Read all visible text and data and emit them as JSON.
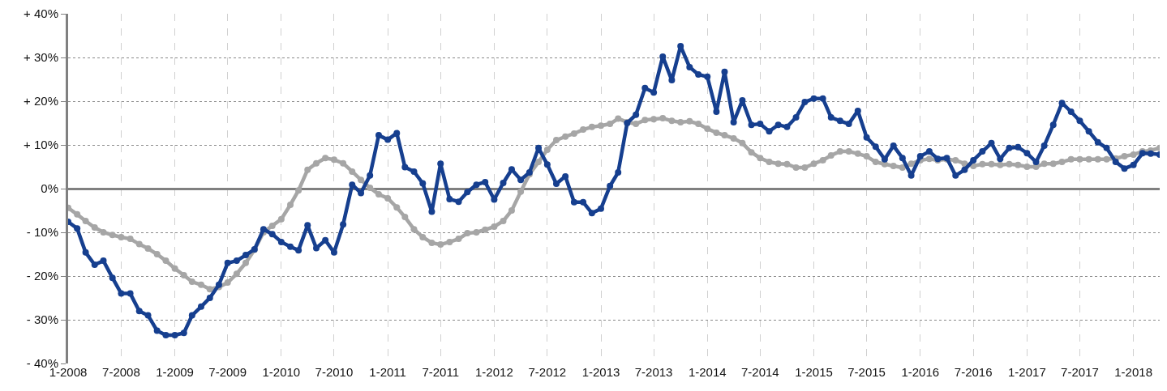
{
  "chart_data": {
    "type": "line",
    "marker": "circle",
    "grid": true,
    "legend": false,
    "x": [
      "2008-01",
      "2008-02",
      "2008-03",
      "2008-04",
      "2008-05",
      "2008-06",
      "2008-07",
      "2008-08",
      "2008-09",
      "2008-10",
      "2008-11",
      "2008-12",
      "2009-01",
      "2009-02",
      "2009-03",
      "2009-04",
      "2009-05",
      "2009-06",
      "2009-07",
      "2009-08",
      "2009-09",
      "2009-10",
      "2009-11",
      "2009-12",
      "2010-01",
      "2010-02",
      "2010-03",
      "2010-04",
      "2010-05",
      "2010-06",
      "2010-07",
      "2010-08",
      "2010-09",
      "2010-10",
      "2010-11",
      "2010-12",
      "2011-01",
      "2011-02",
      "2011-03",
      "2011-04",
      "2011-05",
      "2011-06",
      "2011-07",
      "2011-08",
      "2011-09",
      "2011-10",
      "2011-11",
      "2011-12",
      "2012-01",
      "2012-02",
      "2012-03",
      "2012-04",
      "2012-05",
      "2012-06",
      "2012-07",
      "2012-08",
      "2012-09",
      "2012-10",
      "2012-11",
      "2012-12",
      "2013-01",
      "2013-02",
      "2013-03",
      "2013-04",
      "2013-05",
      "2013-06",
      "2013-07",
      "2013-08",
      "2013-09",
      "2013-10",
      "2013-11",
      "2013-12",
      "2014-01",
      "2014-02",
      "2014-03",
      "2014-04",
      "2014-05",
      "2014-06",
      "2014-07",
      "2014-08",
      "2014-09",
      "2014-10",
      "2014-11",
      "2014-12",
      "2015-01",
      "2015-02",
      "2015-03",
      "2015-04",
      "2015-05",
      "2015-06",
      "2015-07",
      "2015-08",
      "2015-09",
      "2015-10",
      "2015-11",
      "2015-12",
      "2016-01",
      "2016-02",
      "2016-03",
      "2016-04",
      "2016-05",
      "2016-06",
      "2016-07",
      "2016-08",
      "2016-09",
      "2016-10",
      "2016-11",
      "2016-12",
      "2017-01",
      "2017-02",
      "2017-03",
      "2017-04",
      "2017-05",
      "2017-06",
      "2017-07",
      "2017-08",
      "2017-09",
      "2017-10",
      "2017-11",
      "2017-12",
      "2018-01",
      "2018-02",
      "2018-03",
      "2018-04"
    ],
    "series": [
      {
        "color": "#a6a6a6",
        "values": [
          -4.4,
          -5.9,
          -7.4,
          -8.9,
          -10,
          -10.6,
          -11.1,
          -11.5,
          -12.7,
          -13.7,
          -15,
          -16.5,
          -18.3,
          -19.8,
          -21.3,
          -22,
          -23,
          -22.5,
          -21.5,
          -19.5,
          -17,
          -14,
          -10,
          -8.5,
          -7,
          -3.7,
          -0.4,
          4.3,
          5.8,
          7,
          6.6,
          5.8,
          3.9,
          2,
          0.2,
          -1.3,
          -2.2,
          -4.3,
          -6.5,
          -9.3,
          -11.1,
          -12.4,
          -12.8,
          -12.2,
          -11.5,
          -10.2,
          -10,
          -9.4,
          -8.7,
          -7.4,
          -5,
          -0.7,
          3.3,
          6.1,
          8.9,
          11.1,
          11.9,
          12.6,
          13.5,
          14.1,
          14.4,
          14.8,
          16,
          15.2,
          14.8,
          15.7,
          15.9,
          16.1,
          15.5,
          15.2,
          15.4,
          14.8,
          13.7,
          12.8,
          12.2,
          11.5,
          10.4,
          8.3,
          7,
          6.1,
          5.7,
          5.6,
          4.8,
          4.8,
          5.7,
          6.5,
          7.6,
          8.5,
          8.5,
          8,
          7.4,
          6.1,
          5.6,
          5.2,
          4.8,
          5.7,
          6.5,
          6.8,
          6.5,
          6.7,
          6.5,
          5.7,
          5.2,
          5.6,
          5.6,
          5.4,
          5.6,
          5.4,
          5,
          5,
          5.7,
          5.7,
          6.1,
          6.7,
          6.7,
          6.7,
          6.7,
          6.7,
          6.9,
          7.4,
          7.8,
          8.5,
          8.7,
          9.3
        ]
      },
      {
        "color": "#163f8f",
        "values": [
          -7.6,
          -9.1,
          -14.6,
          -17.4,
          -16.5,
          -20.4,
          -24,
          -24,
          -28,
          -29,
          -32.5,
          -33.5,
          -33.5,
          -33,
          -29,
          -27,
          -25,
          -22,
          -17,
          -16.5,
          -15.2,
          -13.9,
          -9.3,
          -10.4,
          -12.2,
          -13.3,
          -14.1,
          -8.4,
          -13.6,
          -11.8,
          -14.6,
          -8.2,
          0.9,
          -1,
          3,
          12.2,
          11.2,
          12.7,
          4.9,
          3.9,
          1.2,
          -5.3,
          5.7,
          -2.4,
          -3,
          -0.8,
          0.9,
          1.5,
          -2.5,
          1.3,
          4.4,
          2,
          3.7,
          9.3,
          5.5,
          1.1,
          2.8,
          -3.1,
          -3.1,
          -5.6,
          -4.6,
          0.6,
          3.7,
          15,
          16.9,
          23,
          22,
          30.2,
          24.8,
          32.6,
          27.8,
          26.1,
          25.6,
          17.6,
          26.7,
          15.2,
          20.2,
          14.6,
          14.8,
          13.1,
          14.6,
          14.1,
          16.3,
          19.8,
          20.6,
          20.6,
          16.3,
          15.5,
          14.8,
          17.8,
          11.7,
          9.6,
          6.7,
          9.8,
          7,
          3,
          7.4,
          8.5,
          6.8,
          7,
          3,
          4.3,
          6.5,
          8.5,
          10.4,
          6.8,
          9.3,
          9.5,
          8.1,
          6.1,
          9.8,
          14.6,
          19.6,
          17.6,
          15.5,
          13.1,
          10.6,
          9.3,
          6.1,
          4.6,
          5.4,
          8.1,
          8,
          7.8
        ]
      }
    ],
    "xlim": [
      "2008-01",
      "2018-04"
    ],
    "xticks": [
      {
        "value": "2008-01",
        "label": "1-2008"
      },
      {
        "value": "2008-07",
        "label": "7-2008"
      },
      {
        "value": "2009-01",
        "label": "1-2009"
      },
      {
        "value": "2009-07",
        "label": "7-2009"
      },
      {
        "value": "2010-01",
        "label": "1-2010"
      },
      {
        "value": "2010-07",
        "label": "7-2010"
      },
      {
        "value": "2011-01",
        "label": "1-2011"
      },
      {
        "value": "2011-07",
        "label": "7-2011"
      },
      {
        "value": "2012-01",
        "label": "1-2012"
      },
      {
        "value": "2012-07",
        "label": "7-2012"
      },
      {
        "value": "2013-01",
        "label": "1-2013"
      },
      {
        "value": "2013-07",
        "label": "7-2013"
      },
      {
        "value": "2014-01",
        "label": "1-2014"
      },
      {
        "value": "2014-07",
        "label": "7-2014"
      },
      {
        "value": "2015-01",
        "label": "1-2015"
      },
      {
        "value": "2015-07",
        "label": "7-2015"
      },
      {
        "value": "2016-01",
        "label": "1-2016"
      },
      {
        "value": "2016-07",
        "label": "7-2016"
      },
      {
        "value": "2017-01",
        "label": "1-2017"
      },
      {
        "value": "2017-07",
        "label": "7-2017"
      },
      {
        "value": "2018-01",
        "label": "1-2018"
      }
    ],
    "ylim": [
      -40,
      40
    ],
    "yticks": [
      {
        "value": -40,
        "label": "- 40%"
      },
      {
        "value": -30,
        "label": "- 30%"
      },
      {
        "value": -20,
        "label": "- 20%"
      },
      {
        "value": -10,
        "label": "- 10%"
      },
      {
        "value": 0,
        "label": "0%"
      },
      {
        "value": 10,
        "label": "+ 10%"
      },
      {
        "value": 20,
        "label": "+ 20%"
      },
      {
        "value": 30,
        "label": "+ 30%"
      },
      {
        "value": 40,
        "label": "+ 40%"
      }
    ]
  }
}
